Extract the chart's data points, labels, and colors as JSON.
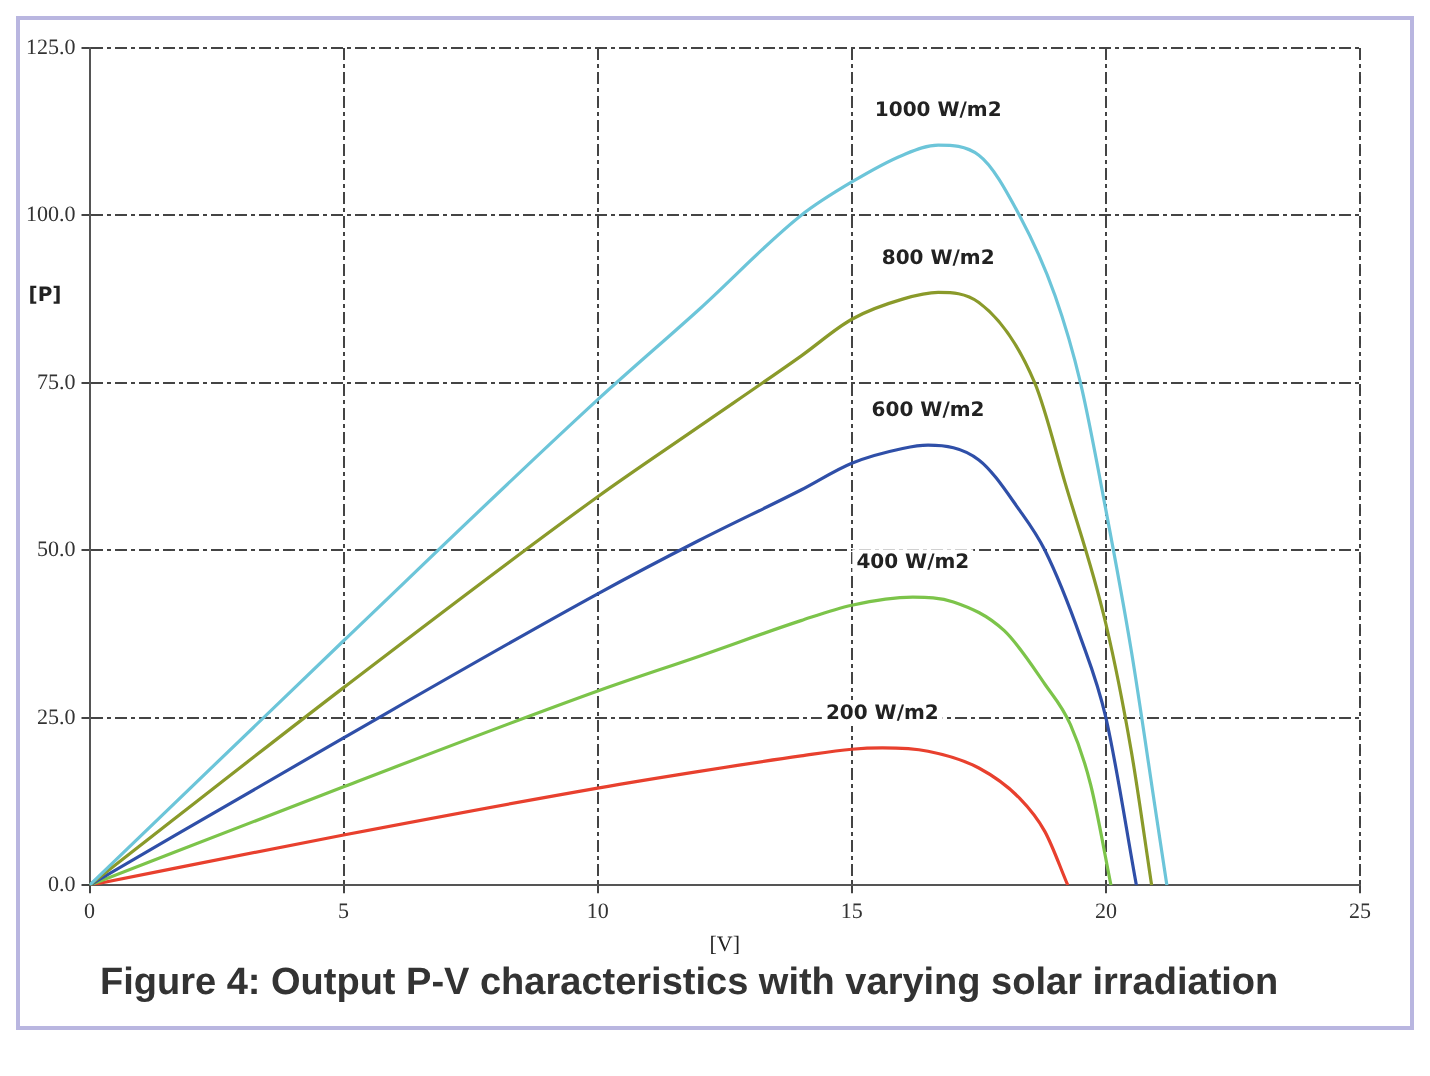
{
  "chart_data": {
    "type": "line",
    "title": "Figure 4: Output P-V characteristics with varying solar irradiation",
    "xlabel": "[V]",
    "ylabel": "[P]",
    "xlim": [
      0,
      25
    ],
    "xticks": [
      0,
      5,
      10,
      15,
      20,
      25
    ],
    "ylim": [
      0,
      125
    ],
    "yticks": [
      {
        "value": 0,
        "label": "0.0"
      },
      {
        "value": 25,
        "label": "25.0"
      },
      {
        "value": 50,
        "label": "50.0"
      },
      {
        "value": 75,
        "label": "75.0"
      },
      {
        "value": 100,
        "label": "100.0"
      },
      {
        "value": 125,
        "label": "125.0"
      }
    ],
    "grid": true,
    "legend": false,
    "marker": "none",
    "line_style": "solid",
    "series": [
      {
        "name": "1000 W/m2",
        "color": "#6cc5d9",
        "x": [
          0,
          5,
          10,
          12,
          14,
          15,
          16,
          16.7,
          17.5,
          18.3,
          19,
          19.5,
          20,
          20.5,
          21,
          21.2
        ],
        "values": [
          0,
          36.5,
          72.5,
          86,
          100,
          105,
          109,
          110.5,
          109,
          100,
          88,
          75,
          56,
          35,
          10,
          0
        ]
      },
      {
        "name": "800 W/m2",
        "color": "#8a9a2a",
        "x": [
          0,
          5,
          10,
          12,
          14,
          15,
          16,
          16.7,
          17.5,
          18.6,
          19.2,
          20,
          20.5,
          20.9
        ],
        "values": [
          0,
          29.5,
          58,
          68.5,
          79,
          84.5,
          87.5,
          88.5,
          87,
          75,
          60,
          39,
          20,
          0
        ]
      },
      {
        "name": "600 W/m2",
        "color": "#2f4fa8",
        "x": [
          0,
          5,
          10,
          12,
          14,
          15,
          16,
          16.5,
          17.5,
          18.3,
          18.8,
          19.5,
          20,
          20.6
        ],
        "values": [
          0,
          22,
          43.5,
          51.5,
          59,
          63,
          65.2,
          65.7,
          63.5,
          56,
          50,
          37,
          25,
          0
        ]
      },
      {
        "name": "400 W/m2",
        "color": "#7cc44a",
        "x": [
          0,
          5,
          10,
          12,
          14,
          15,
          16.2,
          17,
          18,
          18.8,
          19.3,
          19.7,
          20.1
        ],
        "values": [
          0,
          14.7,
          29,
          34.2,
          39.5,
          41.8,
          43,
          42.3,
          38,
          30,
          24,
          15,
          0
        ]
      },
      {
        "name": "200 W/m2",
        "color": "#e8402e",
        "x": [
          0,
          5,
          10,
          12,
          14,
          15,
          15.6,
          16.5,
          17.5,
          18.3,
          18.8,
          19.25
        ],
        "values": [
          0,
          7.5,
          14.5,
          17,
          19.3,
          20.3,
          20.5,
          20,
          17.5,
          13,
          8,
          0
        ]
      }
    ]
  }
}
